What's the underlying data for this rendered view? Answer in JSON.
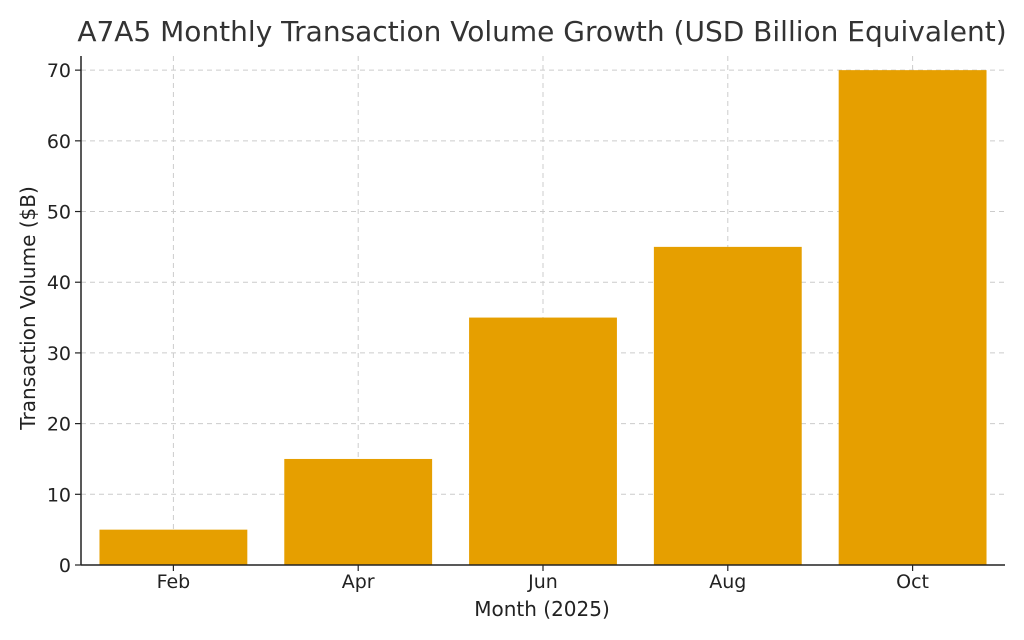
{
  "chart_data": {
    "type": "bar",
    "title": "A7A5 Monthly Transaction Volume Growth (USD Billion Equivalent)",
    "xlabel": "Month (2025)",
    "ylabel": "Transaction Volume ($B)",
    "categories": [
      "Feb",
      "Apr",
      "Jun",
      "Aug",
      "Oct"
    ],
    "values": [
      5,
      15,
      35,
      45,
      70
    ],
    "ylim": [
      0,
      72
    ],
    "yticks": [
      0,
      10,
      20,
      30,
      40,
      50,
      60,
      70
    ],
    "grid": true,
    "bar_color": "#E69F00"
  }
}
